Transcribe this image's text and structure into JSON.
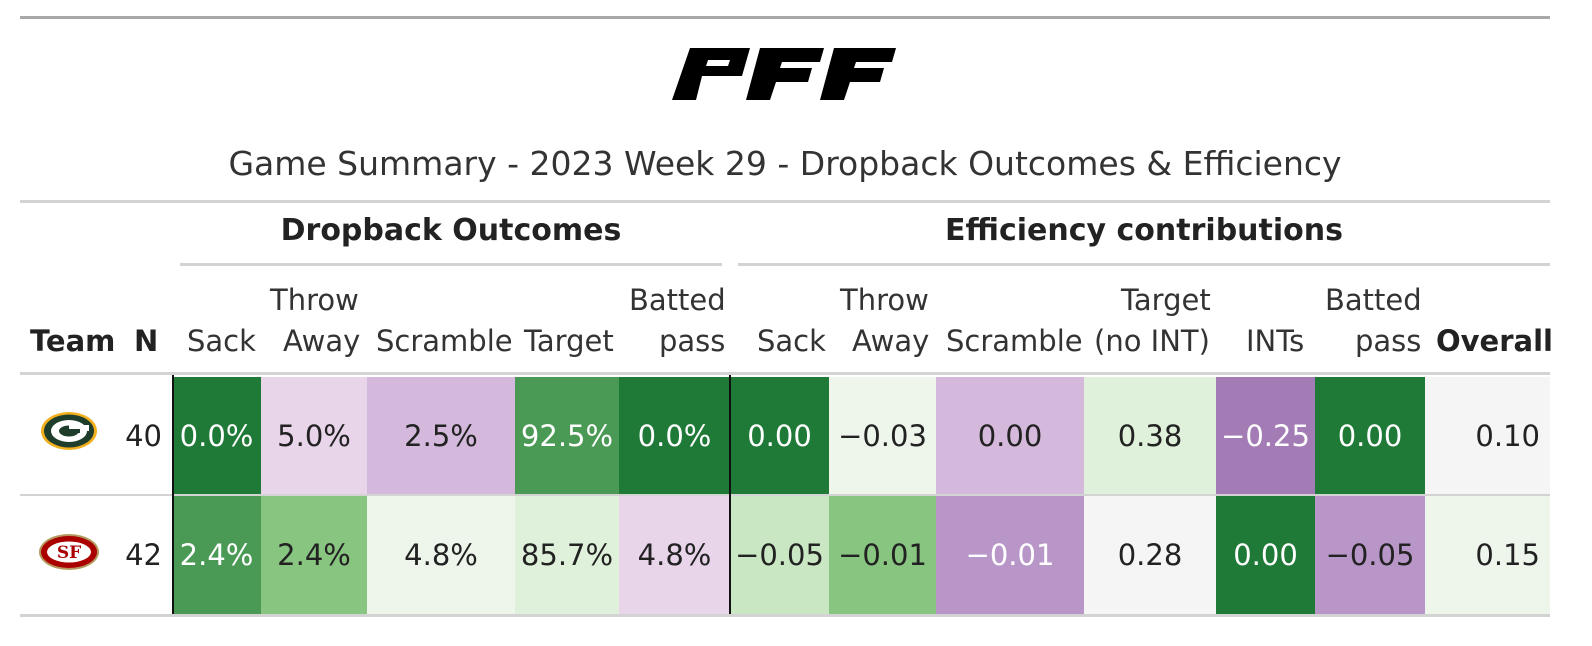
{
  "brand": "PFF",
  "title": "Game Summary - 2023 Week 29 - Dropback Outcomes & Efficiency",
  "spanners": {
    "dropback": "Dropback Outcomes",
    "efficiency": "Efficiency contributions"
  },
  "headers": {
    "team": "Team",
    "n": "N",
    "sack": "Sack",
    "throw_away_1": "Throw",
    "throw_away_2": "Away",
    "scramble": "Scramble",
    "target": "Target",
    "batted_1": "Batted",
    "batted_2": "pass",
    "eff_sack": "Sack",
    "eff_throw_1": "Throw",
    "eff_throw_2": "Away",
    "eff_scramble": "Scramble",
    "eff_target_1": "Target",
    "eff_target_2": "(no INT)",
    "eff_ints": "INTs",
    "eff_batted_1": "Batted",
    "eff_batted_2": "pass",
    "overall": "Overall"
  },
  "rows": [
    {
      "team_logo": "packers-logo",
      "n": "40",
      "sack": "0.0%",
      "throw_away": "5.0%",
      "scramble": "2.5%",
      "target": "92.5%",
      "batted": "0.0%",
      "eff_sack": "0.00",
      "eff_throw": "−0.03",
      "eff_scramble": "0.00",
      "eff_target": "0.38",
      "eff_ints": "−0.25",
      "eff_batted": "0.00",
      "overall": "0.10"
    },
    {
      "team_logo": "49ers-logo",
      "n": "42",
      "sack": "2.4%",
      "throw_away": "2.4%",
      "scramble": "4.8%",
      "target": "85.7%",
      "batted": "4.8%",
      "eff_sack": "−0.05",
      "eff_throw": "−0.01",
      "eff_scramble": "−0.01",
      "eff_target": "0.28",
      "eff_ints": "0.00",
      "eff_batted": "−0.05",
      "overall": "0.15"
    }
  ],
  "colors": {
    "dark_green": "#1e7a36",
    "mid_green": "#4a9a55",
    "light_green": "#88c581",
    "pale_green": "#c9e7c3",
    "paler_green": "#dff1da",
    "faint_green": "#eef6ec",
    "neutral": "#f5f5f5",
    "pale_purple": "#e8d5ea",
    "light_purple": "#d4b9dc",
    "mid_purple": "#b896c8",
    "dark_purple": "#a37bb5"
  }
}
